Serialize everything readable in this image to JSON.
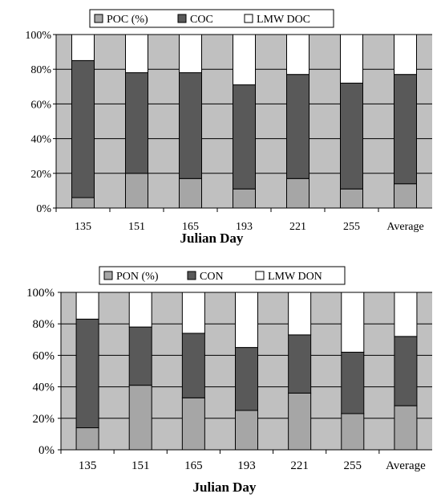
{
  "colors": {
    "plot_background": "#c0c0c0",
    "particulate": "#a6a6a6",
    "colloidal": "#595959",
    "lmw_dissolved": "#ffffff"
  },
  "chart_data": [
    {
      "type": "bar",
      "stacked": true,
      "percent_stacked": true,
      "categories": [
        "135",
        "151",
        "165",
        "193",
        "221",
        "255",
        "Average"
      ],
      "xlabel": "Julian Day",
      "ylabel": "",
      "ylim": [
        0,
        100
      ],
      "yticks": [
        "0%",
        "20%",
        "40%",
        "60%",
        "80%",
        "100%"
      ],
      "grid": true,
      "legend_position": "top",
      "series": [
        {
          "name": "POC (%)",
          "values": [
            6,
            20,
            17,
            11,
            17,
            11,
            14
          ]
        },
        {
          "name": "COC",
          "values": [
            79,
            58,
            61,
            60,
            60,
            61,
            63
          ]
        },
        {
          "name": "LMW DOC",
          "values": [
            15,
            22,
            22,
            29,
            23,
            28,
            23
          ]
        }
      ]
    },
    {
      "type": "bar",
      "stacked": true,
      "percent_stacked": true,
      "categories": [
        "135",
        "151",
        "165",
        "193",
        "221",
        "255",
        "Average"
      ],
      "xlabel": "Julian Day",
      "ylabel": "",
      "ylim": [
        0,
        100
      ],
      "yticks": [
        "0%",
        "20%",
        "40%",
        "60%",
        "80%",
        "100%"
      ],
      "grid": true,
      "legend_position": "top",
      "series": [
        {
          "name": "PON (%)",
          "values": [
            14,
            41,
            33,
            25,
            36,
            23,
            28
          ]
        },
        {
          "name": "CON",
          "values": [
            69,
            37,
            41,
            40,
            37,
            39,
            44
          ]
        },
        {
          "name": "LMW DON",
          "values": [
            17,
            22,
            26,
            35,
            27,
            38,
            28
          ]
        }
      ]
    }
  ]
}
